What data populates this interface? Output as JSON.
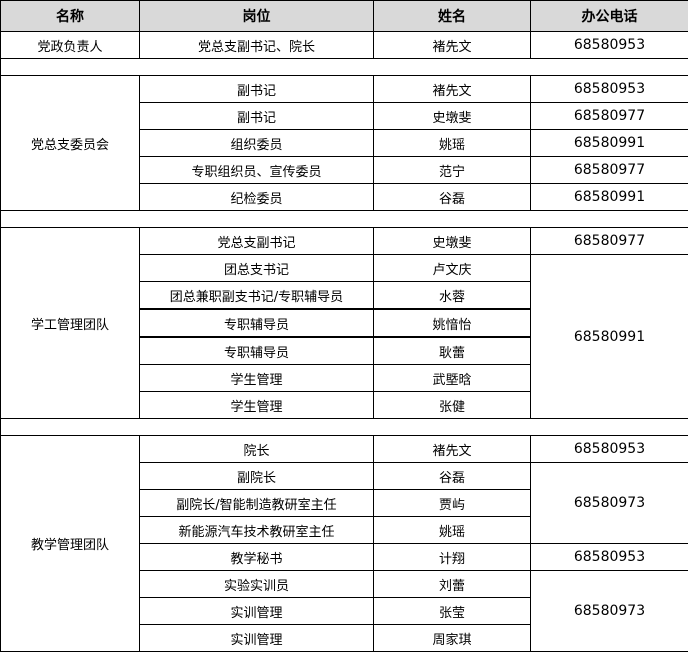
{
  "headers": [
    "名称",
    "岗位",
    "姓名",
    "办公电话"
  ],
  "sections": [
    {
      "name": "党政负责人",
      "rows": [
        {
          "position": "党总支副书记、院长",
          "person": "褚先文"
        }
      ],
      "phones": [
        {
          "value": "68580953",
          "rows": 1
        }
      ]
    },
    {
      "name": "党总支委员会",
      "rows": [
        {
          "position": "副书记",
          "person": "褚先文"
        },
        {
          "position": "副书记",
          "person": "史墩斐"
        },
        {
          "position": "组织委员",
          "person": "姚瑶"
        },
        {
          "position": "专职组织员、宣传委员",
          "person": "范宁"
        },
        {
          "position": "纪检委员",
          "person": "谷磊"
        }
      ],
      "phones": [
        {
          "value": "68580953",
          "rows": 1
        },
        {
          "value": "68580977",
          "rows": 1
        },
        {
          "value": "68580991",
          "rows": 1
        },
        {
          "value": "68580977",
          "rows": 1
        },
        {
          "value": "68580991",
          "rows": 1
        }
      ]
    },
    {
      "name": "学工管理团队",
      "rows": [
        {
          "position": "党总支副书记",
          "person": "史墩斐"
        },
        {
          "position": "团总支书记",
          "person": "卢文庆"
        },
        {
          "position": "团总兼职副支书记/专职辅导员",
          "person": "水蓉"
        },
        {
          "position": "专职辅导员",
          "person": "姚愔怡"
        },
        {
          "position": "专职辅导员",
          "person": "耿蕾"
        },
        {
          "position": "学生管理",
          "person": "武塈晗"
        },
        {
          "position": "学生管理",
          "person": "张健"
        }
      ],
      "phones": [
        {
          "value": "68580977",
          "rows": 1
        },
        {
          "value": "68580991",
          "rows": 6
        }
      ]
    },
    {
      "name": "教学管理团队",
      "rows": [
        {
          "position": "院长",
          "person": "褚先文"
        },
        {
          "position": "副院长",
          "person": "谷磊"
        },
        {
          "position": "副院长/智能制造教研室主任",
          "person": "贾屿"
        },
        {
          "position": "新能源汽车技术教研室主任",
          "person": "姚瑶"
        },
        {
          "position": "教学秘书",
          "person": "计翔"
        },
        {
          "position": "实验实训员",
          "person": "刘蕾"
        },
        {
          "position": "实训管理",
          "person": "张莹"
        },
        {
          "position": "实训管理",
          "person": "周家琪"
        }
      ],
      "phones": [
        {
          "value": "68580953",
          "rows": 1
        },
        {
          "value": "68580973",
          "rows": 3
        },
        {
          "value": "68580953",
          "rows": 1
        },
        {
          "value": "68580973",
          "rows": 3
        }
      ]
    }
  ]
}
